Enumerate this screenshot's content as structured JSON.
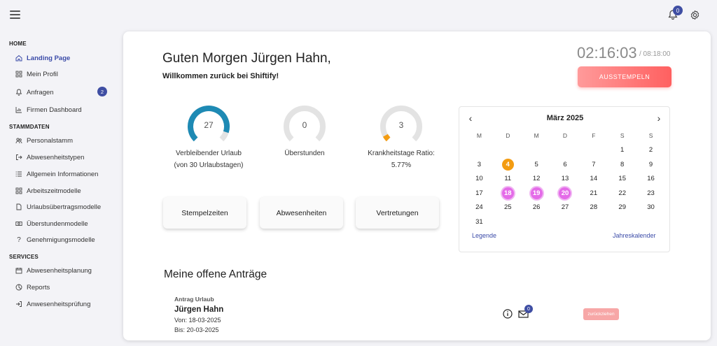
{
  "header": {
    "notifications_count": "0"
  },
  "sidebar": {
    "sections": [
      {
        "title": "HOME"
      },
      {
        "title": "STAMMDATEN"
      },
      {
        "title": "SERVICES"
      }
    ],
    "items": [
      {
        "label": "Landing Page",
        "icon": "home-icon"
      },
      {
        "label": "Mein Profil",
        "icon": "grid-icon"
      },
      {
        "label": "Anfragen",
        "icon": "bell-icon",
        "badge": "2"
      },
      {
        "label": "Firmen Dashboard",
        "icon": "bar-chart-icon"
      },
      {
        "label": "Personalstamm",
        "icon": "users-icon"
      },
      {
        "label": "Abwesenheitstypen",
        "icon": "exit-icon"
      },
      {
        "label": "Allgemein Informationen",
        "icon": "list-icon"
      },
      {
        "label": "Arbeitszeitmodelle",
        "icon": "grid-icon"
      },
      {
        "label": "Urlaubsübertragsmodelle",
        "icon": "document-icon"
      },
      {
        "label": "Überstundenmodelle",
        "icon": "money-icon"
      },
      {
        "label": "Genehmigungsmodelle",
        "icon": "question-icon"
      },
      {
        "label": "Abwesenheitsplanung",
        "icon": "calendar-icon"
      },
      {
        "label": "Reports",
        "icon": "pie-chart-icon"
      },
      {
        "label": "Anwesenheitsprüfung",
        "icon": "login-icon"
      }
    ]
  },
  "main": {
    "greeting": "Guten Morgen Jürgen Hahn,",
    "welcome": "Willkommen zurück bei Shiftify!",
    "clock": {
      "current": "02:16:03",
      "total": "/ 08:18:00"
    },
    "stamp_button": "AUSSTEMPELN",
    "gauges": [
      {
        "value": "27",
        "label_line1": "Verbleibender Urlaub",
        "label_line2": "(von 30 Urlaubstagen)",
        "fraction": 0.9,
        "color": "#1e8ab4"
      },
      {
        "value": "0",
        "label_line1": "Überstunden",
        "label_line2": "",
        "fraction": 0,
        "color": "#f39c12"
      },
      {
        "value": "3",
        "label_line1": "Krankheitstage Ratio:",
        "label_line2": "5.77%",
        "fraction": 0.0577,
        "color": "#f39c12"
      }
    ],
    "actions": [
      "Stempelzeiten",
      "Abwesenheiten",
      "Vertretungen"
    ],
    "calendar": {
      "month": "März 2025",
      "weekdays": [
        "M",
        "D",
        "M",
        "D",
        "F",
        "S",
        "S"
      ],
      "weeks": [
        [
          "",
          "",
          "",
          "",
          "",
          "1",
          "2"
        ],
        [
          "3",
          "4",
          "5",
          "6",
          "7",
          "8",
          "9"
        ],
        [
          "10",
          "11",
          "12",
          "13",
          "14",
          "15",
          "16"
        ],
        [
          "17",
          "18",
          "19",
          "20",
          "21",
          "22",
          "23"
        ],
        [
          "24",
          "25",
          "26",
          "27",
          "28",
          "29",
          "30"
        ],
        [
          "31",
          "",
          "",
          "",
          "",
          "",
          ""
        ]
      ],
      "today": "4",
      "absence_days": [
        "18",
        "19",
        "20"
      ],
      "legend_link": "Legende",
      "annual_link": "Jahreskalender"
    },
    "requests": {
      "title": "Meine offene Anträge",
      "items": [
        {
          "type": "Antrag Urlaub",
          "name": "Jürgen Hahn",
          "from": "Von: 18-03-2025",
          "to": "Bis: 20-03-2025",
          "messages": "0",
          "withdraw_label": "zurückziehen"
        }
      ]
    }
  },
  "colors": {
    "accent": "#3b4ba8",
    "stamp_button": "#ff6b6b",
    "today": "#f39c12",
    "absence": "#e46be8"
  }
}
